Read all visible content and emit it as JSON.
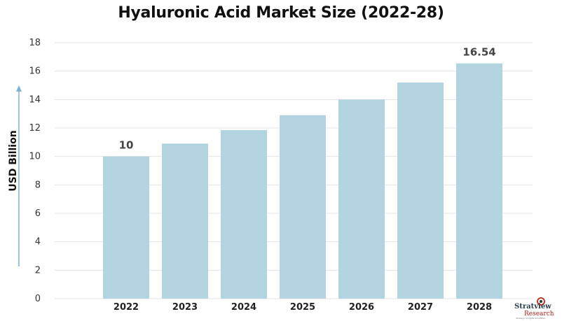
{
  "chart_data": {
    "type": "bar",
    "title": "Hyaluronic Acid Market Size (2022-28)",
    "xlabel": "",
    "ylabel": "USD Billion",
    "categories": [
      "2022",
      "2023",
      "2024",
      "2025",
      "2026",
      "2027",
      "2028"
    ],
    "values": [
      10,
      10.9,
      11.85,
      12.9,
      14.0,
      15.2,
      16.54
    ],
    "data_labels": [
      "10",
      "",
      "",
      "",
      "",
      "",
      "16.54"
    ],
    "ylim": [
      0,
      18
    ],
    "yticks": [
      0,
      2,
      4,
      6,
      8,
      10,
      12,
      14,
      16,
      18
    ],
    "grid": true,
    "legend": "none",
    "bar_color": "#b2d4e0",
    "grid_color": "#e3e3e3",
    "arrow_color": "#7fb3d5"
  },
  "logo": {
    "name": "Stratview",
    "sub": "Research",
    "tagline": "Strategic Insights Simplified"
  }
}
